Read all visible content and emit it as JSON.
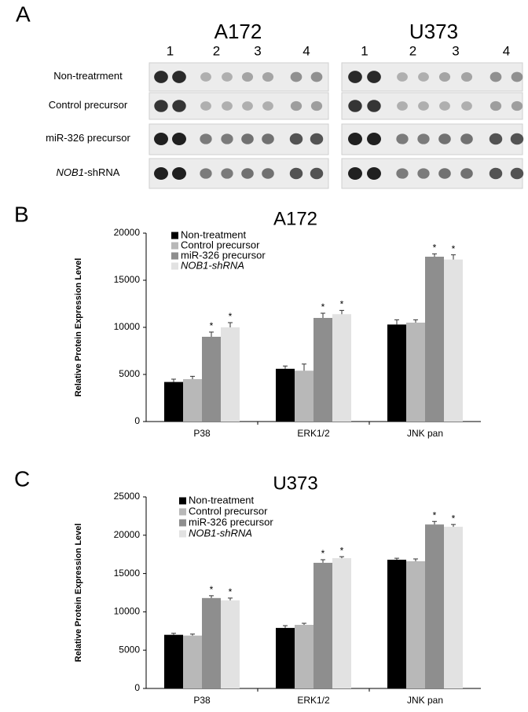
{
  "panel_a": {
    "label": "A",
    "cell_lines": [
      "A172",
      "U373"
    ],
    "lanes": [
      "1",
      "2",
      "3",
      "4"
    ],
    "rows": [
      {
        "text": "Non-treatrment"
      },
      {
        "text": "Control precursor"
      },
      {
        "text": "miR-326 precursor"
      },
      {
        "italic": "NOB1",
        "text": "-shRNA"
      }
    ]
  },
  "panel_labels": [
    "B",
    "C"
  ],
  "chart_data": [
    {
      "type": "bar",
      "title": "A172",
      "ylabel": "Relative Protein Expression Level",
      "categories": [
        "P38",
        "ERK1/2",
        "JNK pan"
      ],
      "ylim": [
        0,
        20000
      ],
      "yticks": [
        0,
        5000,
        10000,
        15000,
        20000
      ],
      "series": [
        {
          "name": "Non-treatment",
          "color": "#000000",
          "values": [
            4200,
            5600,
            10300
          ],
          "errors": [
            300,
            300,
            500
          ]
        },
        {
          "name": "Control precursor",
          "color": "#b8b8b8",
          "values": [
            4500,
            5400,
            10500
          ],
          "errors": [
            300,
            700,
            300
          ]
        },
        {
          "name": "miR-326 precursor",
          "color": "#8e8e8e",
          "values": [
            9000,
            11000,
            17500
          ],
          "errors": [
            500,
            500,
            300
          ],
          "significance": [
            "*",
            "*",
            "*"
          ]
        },
        {
          "name": "NOB1-shRNA",
          "italic": true,
          "color": "#e2e2e2",
          "values": [
            10000,
            11400,
            17200
          ],
          "errors": [
            500,
            400,
            500
          ],
          "significance": [
            "*",
            "*",
            "*"
          ]
        }
      ]
    },
    {
      "type": "bar",
      "title": "U373",
      "ylabel": "Relative Protein Expression Level",
      "categories": [
        "P38",
        "ERK1/2",
        "JNK pan"
      ],
      "ylim": [
        0,
        25000
      ],
      "yticks": [
        0,
        5000,
        10000,
        15000,
        20000,
        25000
      ],
      "series": [
        {
          "name": "Non-treatment",
          "color": "#000000",
          "values": [
            7000,
            7900,
            16800
          ],
          "errors": [
            200,
            300,
            200
          ]
        },
        {
          "name": "Control precursor",
          "color": "#b8b8b8",
          "values": [
            6900,
            8300,
            16600
          ],
          "errors": [
            200,
            200,
            300
          ]
        },
        {
          "name": "miR-326 precursor",
          "color": "#8e8e8e",
          "values": [
            11800,
            16400,
            21400
          ],
          "errors": [
            300,
            400,
            400
          ],
          "significance": [
            "*",
            "*",
            "*"
          ]
        },
        {
          "name": "NOB1-shRNA",
          "italic": true,
          "color": "#e2e2e2",
          "values": [
            11500,
            17000,
            21100
          ],
          "errors": [
            300,
            200,
            300
          ],
          "significance": [
            "*",
            "*",
            "*"
          ]
        }
      ]
    }
  ]
}
